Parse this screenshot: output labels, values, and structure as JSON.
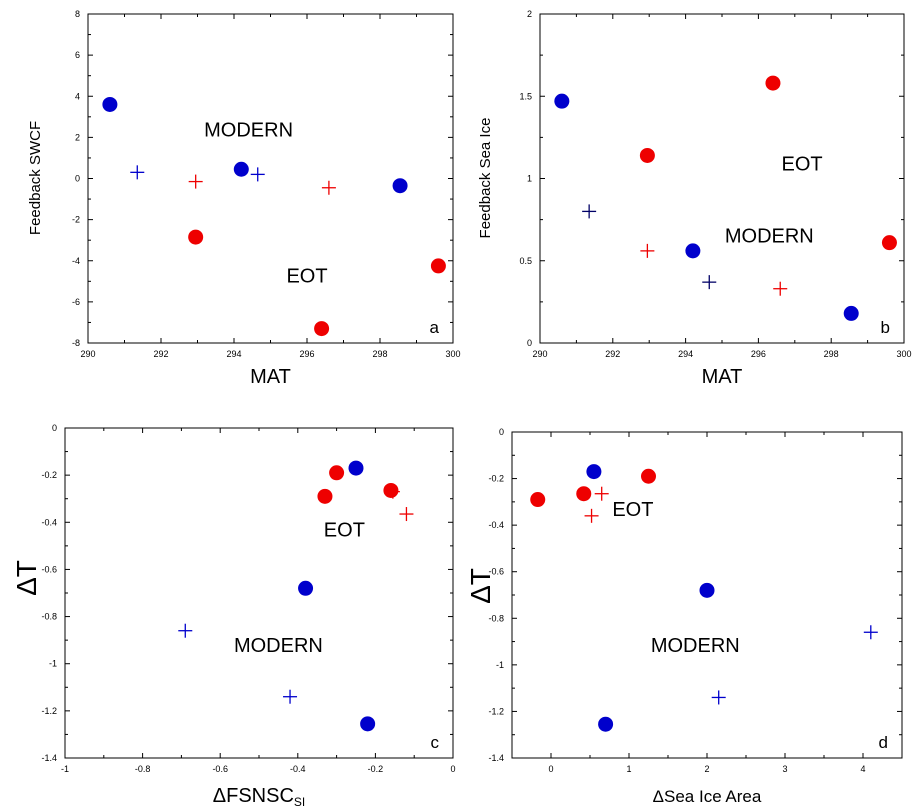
{
  "chart_data": [
    {
      "panel": "a",
      "type": "scatter",
      "xlabel": "MAT",
      "ylabel": "Feedback SWCF",
      "xlim": [
        290,
        300
      ],
      "ylim": [
        -8,
        8
      ],
      "xticks": [
        290,
        292,
        294,
        296,
        298,
        300
      ],
      "yticks": [
        -8,
        -6,
        -4,
        -2,
        0,
        2,
        4,
        6,
        8
      ],
      "grid": false,
      "series": [
        {
          "marker": "circle",
          "color": "#0000cc",
          "points": [
            [
              290.6,
              3.6
            ],
            [
              294.2,
              0.45
            ],
            [
              298.55,
              -0.35
            ]
          ]
        },
        {
          "marker": "circle",
          "color": "#ee0000",
          "points": [
            [
              292.95,
              -2.85
            ],
            [
              296.4,
              -7.3
            ],
            [
              299.6,
              -4.25
            ]
          ]
        },
        {
          "marker": "plus",
          "color": "#0000cc",
          "points": [
            [
              291.35,
              0.3
            ],
            [
              294.65,
              0.2
            ]
          ]
        },
        {
          "marker": "plus",
          "color": "#ee0000",
          "points": [
            [
              292.95,
              -0.15
            ],
            [
              296.6,
              -0.45
            ]
          ]
        }
      ],
      "annotations": [
        {
          "text": "MODERN",
          "x": 294.4,
          "y": 2.05
        },
        {
          "text": "EOT",
          "x": 296.0,
          "y": -5.05
        }
      ],
      "panel_label": "a"
    },
    {
      "panel": "b",
      "type": "scatter",
      "xlabel": "MAT",
      "ylabel": "Feedback Sea Ice",
      "xlim": [
        290,
        300
      ],
      "ylim": [
        0,
        2
      ],
      "xticks": [
        290,
        292,
        294,
        296,
        298,
        300
      ],
      "yticks": [
        0,
        0.5,
        1,
        1.5,
        2
      ],
      "grid": false,
      "series": [
        {
          "marker": "circle",
          "color": "#0000cc",
          "points": [
            [
              290.6,
              1.47
            ],
            [
              294.2,
              0.56
            ],
            [
              298.55,
              0.18
            ]
          ]
        },
        {
          "marker": "circle",
          "color": "#ee0000",
          "points": [
            [
              292.95,
              1.14
            ],
            [
              296.4,
              1.58
            ],
            [
              299.6,
              0.61
            ]
          ]
        },
        {
          "marker": "plus",
          "color": "#000066",
          "points": [
            [
              291.35,
              0.8
            ],
            [
              294.65,
              0.37
            ]
          ]
        },
        {
          "marker": "plus",
          "color": "#ee0000",
          "points": [
            [
              292.95,
              0.56
            ],
            [
              296.6,
              0.33
            ]
          ]
        }
      ],
      "annotations": [
        {
          "text": "EOT",
          "x": 297.2,
          "y": 1.05
        },
        {
          "text": "MODERN",
          "x": 296.3,
          "y": 0.61
        }
      ],
      "panel_label": "b"
    },
    {
      "panel": "c",
      "type": "scatter",
      "xlabel": "ΔFSNSC",
      "xlabel_sub": "SI",
      "ylabel": "ΔT",
      "xlim": [
        -1,
        0
      ],
      "ylim": [
        -1.4,
        0
      ],
      "xticks": [
        -1,
        -0.8,
        -0.6,
        -0.4,
        -0.2,
        0
      ],
      "yticks": [
        -1.4,
        -1.2,
        -1,
        -0.8,
        -0.6,
        -0.4,
        -0.2,
        0
      ],
      "grid": false,
      "series": [
        {
          "marker": "circle",
          "color": "#0000cc",
          "points": [
            [
              -0.25,
              -0.17
            ],
            [
              -0.38,
              -0.68
            ],
            [
              -0.22,
              -1.255
            ]
          ]
        },
        {
          "marker": "circle",
          "color": "#ee0000",
          "points": [
            [
              -0.3,
              -0.19
            ],
            [
              -0.33,
              -0.29
            ],
            [
              -0.16,
              -0.265
            ]
          ]
        },
        {
          "marker": "plus",
          "color": "#0000cc",
          "points": [
            [
              -0.69,
              -0.86
            ],
            [
              -0.42,
              -1.14
            ]
          ]
        },
        {
          "marker": "plus",
          "color": "#ee0000",
          "points": [
            [
              -0.155,
              -0.27
            ],
            [
              -0.12,
              -0.365
            ]
          ]
        }
      ],
      "annotations": [
        {
          "text": "EOT",
          "x": -0.28,
          "y": -0.46
        },
        {
          "text": "MODERN",
          "x": -0.45,
          "y": -0.95
        }
      ],
      "panel_label": "c"
    },
    {
      "panel": "d",
      "type": "scatter",
      "xlabel": "ΔSea Ice Area",
      "ylabel": "ΔT",
      "xlim": [
        -0.5,
        4.5
      ],
      "ylim": [
        -1.4,
        0
      ],
      "xticks": [
        0,
        1,
        2,
        3,
        4
      ],
      "yticks": [
        -1.4,
        -1.2,
        -1,
        -0.8,
        -0.6,
        -0.4,
        -0.2,
        0
      ],
      "grid": false,
      "series": [
        {
          "marker": "circle",
          "color": "#0000cc",
          "points": [
            [
              0.55,
              -0.17
            ],
            [
              2.0,
              -0.68
            ],
            [
              0.7,
              -1.255
            ]
          ]
        },
        {
          "marker": "circle",
          "color": "#ee0000",
          "points": [
            [
              -0.17,
              -0.29
            ],
            [
              0.42,
              -0.265
            ],
            [
              1.25,
              -0.19
            ]
          ]
        },
        {
          "marker": "plus",
          "color": "#0000cc",
          "points": [
            [
              4.1,
              -0.86
            ],
            [
              2.15,
              -1.14
            ]
          ]
        },
        {
          "marker": "plus",
          "color": "#ee0000",
          "points": [
            [
              0.65,
              -0.265
            ],
            [
              0.52,
              -0.36
            ]
          ]
        }
      ],
      "annotations": [
        {
          "text": "EOT",
          "x": 1.05,
          "y": -0.36
        },
        {
          "text": "MODERN",
          "x": 1.85,
          "y": -0.945
        }
      ],
      "panel_label": "d"
    }
  ]
}
